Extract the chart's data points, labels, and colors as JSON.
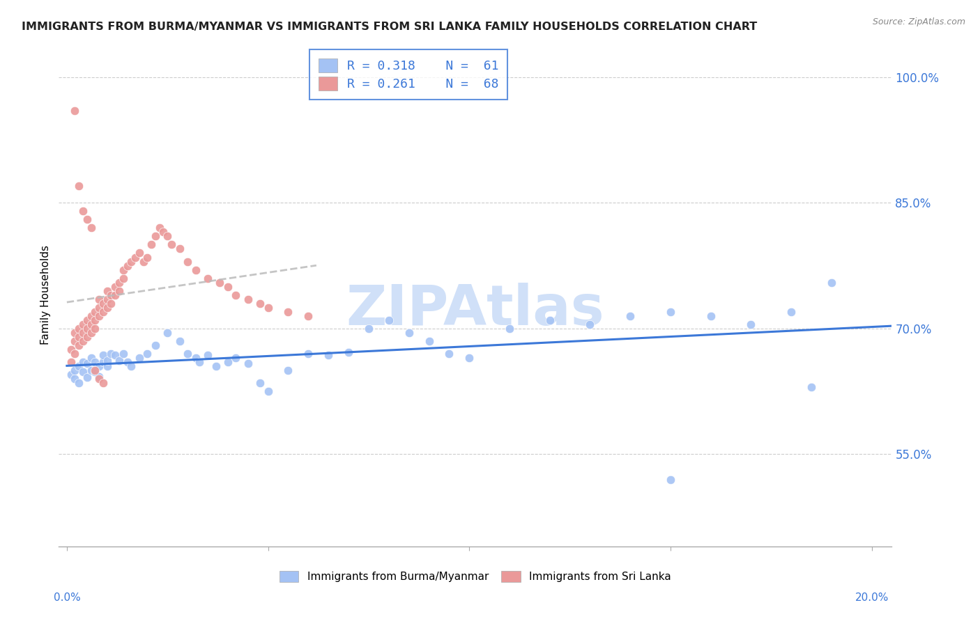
{
  "title": "IMMIGRANTS FROM BURMA/MYANMAR VS IMMIGRANTS FROM SRI LANKA FAMILY HOUSEHOLDS CORRELATION CHART",
  "source": "Source: ZipAtlas.com",
  "ylabel": "Family Households",
  "ymin": 0.44,
  "ymax": 1.04,
  "xmin": -0.002,
  "xmax": 0.205,
  "blue_R": 0.318,
  "blue_N": 61,
  "pink_R": 0.261,
  "pink_N": 68,
  "blue_color": "#a4c2f4",
  "pink_color": "#ea9999",
  "blue_line_color": "#3c78d8",
  "pink_line_color": "#cc9999",
  "watermark_color": "#d0e0f8",
  "grid_color": "#cccccc",
  "title_color": "#222222",
  "axis_label_color": "#3c78d8",
  "legend_border_color": "#3c78d8",
  "ytick_positions": [
    0.55,
    0.7,
    0.85,
    1.0
  ],
  "ytick_labels": [
    "55.0%",
    "70.0%",
    "85.0%",
    "100.0%"
  ],
  "blue_scatter_x": [
    0.001,
    0.002,
    0.002,
    0.003,
    0.003,
    0.004,
    0.004,
    0.005,
    0.005,
    0.006,
    0.006,
    0.007,
    0.007,
    0.008,
    0.008,
    0.009,
    0.009,
    0.01,
    0.01,
    0.011,
    0.012,
    0.013,
    0.014,
    0.015,
    0.016,
    0.018,
    0.02,
    0.022,
    0.025,
    0.028,
    0.03,
    0.032,
    0.033,
    0.035,
    0.037,
    0.04,
    0.042,
    0.045,
    0.048,
    0.05,
    0.055,
    0.06,
    0.065,
    0.07,
    0.075,
    0.08,
    0.085,
    0.09,
    0.095,
    0.1,
    0.11,
    0.12,
    0.13,
    0.14,
    0.15,
    0.16,
    0.17,
    0.18,
    0.19,
    0.15,
    0.185
  ],
  "blue_scatter_y": [
    0.645,
    0.64,
    0.65,
    0.635,
    0.655,
    0.648,
    0.66,
    0.642,
    0.658,
    0.65,
    0.665,
    0.648,
    0.66,
    0.643,
    0.655,
    0.66,
    0.668,
    0.655,
    0.662,
    0.67,
    0.668,
    0.662,
    0.67,
    0.66,
    0.655,
    0.665,
    0.67,
    0.68,
    0.695,
    0.685,
    0.67,
    0.665,
    0.66,
    0.668,
    0.655,
    0.66,
    0.665,
    0.658,
    0.635,
    0.625,
    0.65,
    0.67,
    0.668,
    0.672,
    0.7,
    0.71,
    0.695,
    0.685,
    0.67,
    0.665,
    0.7,
    0.71,
    0.705,
    0.715,
    0.72,
    0.715,
    0.705,
    0.72,
    0.755,
    0.52,
    0.63
  ],
  "pink_scatter_x": [
    0.001,
    0.001,
    0.002,
    0.002,
    0.002,
    0.003,
    0.003,
    0.003,
    0.004,
    0.004,
    0.004,
    0.005,
    0.005,
    0.005,
    0.006,
    0.006,
    0.006,
    0.007,
    0.007,
    0.007,
    0.008,
    0.008,
    0.008,
    0.009,
    0.009,
    0.01,
    0.01,
    0.01,
    0.011,
    0.011,
    0.012,
    0.012,
    0.013,
    0.013,
    0.014,
    0.014,
    0.015,
    0.016,
    0.017,
    0.018,
    0.019,
    0.02,
    0.021,
    0.022,
    0.023,
    0.024,
    0.025,
    0.026,
    0.028,
    0.03,
    0.032,
    0.035,
    0.038,
    0.04,
    0.042,
    0.045,
    0.048,
    0.05,
    0.055,
    0.06,
    0.002,
    0.003,
    0.004,
    0.005,
    0.006,
    0.007,
    0.008,
    0.009
  ],
  "pink_scatter_y": [
    0.66,
    0.675,
    0.67,
    0.685,
    0.695,
    0.68,
    0.69,
    0.7,
    0.685,
    0.695,
    0.705,
    0.69,
    0.7,
    0.71,
    0.695,
    0.705,
    0.715,
    0.7,
    0.71,
    0.72,
    0.715,
    0.725,
    0.735,
    0.72,
    0.73,
    0.725,
    0.735,
    0.745,
    0.73,
    0.74,
    0.74,
    0.75,
    0.745,
    0.755,
    0.76,
    0.77,
    0.775,
    0.78,
    0.785,
    0.79,
    0.78,
    0.785,
    0.8,
    0.81,
    0.82,
    0.815,
    0.81,
    0.8,
    0.795,
    0.78,
    0.77,
    0.76,
    0.755,
    0.75,
    0.74,
    0.735,
    0.73,
    0.725,
    0.72,
    0.715,
    0.96,
    0.87,
    0.84,
    0.83,
    0.82,
    0.65,
    0.64,
    0.635
  ]
}
